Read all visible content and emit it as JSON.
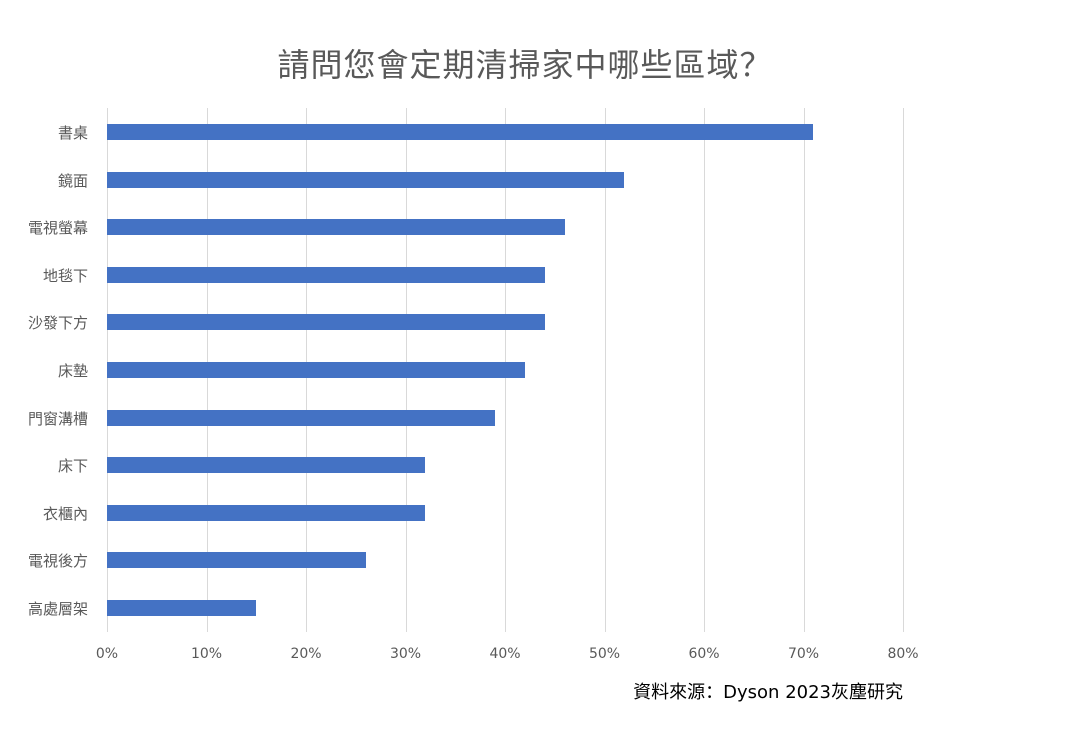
{
  "title": "請問您會定期清掃家中哪些區域？",
  "source": "資料來源：Dyson 2023灰塵研究",
  "colors": {
    "bar": "#4472c4",
    "grid": "#d9d9d9",
    "text": "#595959"
  },
  "x_ticks": [
    "0%",
    "10%",
    "20%",
    "30%",
    "40%",
    "50%",
    "60%",
    "70%",
    "80%"
  ],
  "chart_data": {
    "type": "bar",
    "orientation": "horizontal",
    "title": "請問您會定期清掃家中哪些區域？",
    "categories": [
      "書桌",
      "鏡面",
      "電視螢幕",
      "地毯下",
      "沙發下方",
      "床墊",
      "門窗溝槽",
      "床下",
      "衣櫃內",
      "電視後方",
      "高處層架"
    ],
    "values": [
      71,
      52,
      46,
      44,
      44,
      42,
      39,
      32,
      32,
      26,
      15
    ],
    "unit": "%",
    "xlabel": "",
    "ylabel": "",
    "xlim": [
      0,
      80
    ],
    "x_tick_labels": [
      "0%",
      "10%",
      "20%",
      "30%",
      "40%",
      "50%",
      "60%",
      "70%",
      "80%"
    ],
    "grid": true,
    "legend": null,
    "annotations": [
      "資料來源：Dyson 2023灰塵研究"
    ]
  }
}
